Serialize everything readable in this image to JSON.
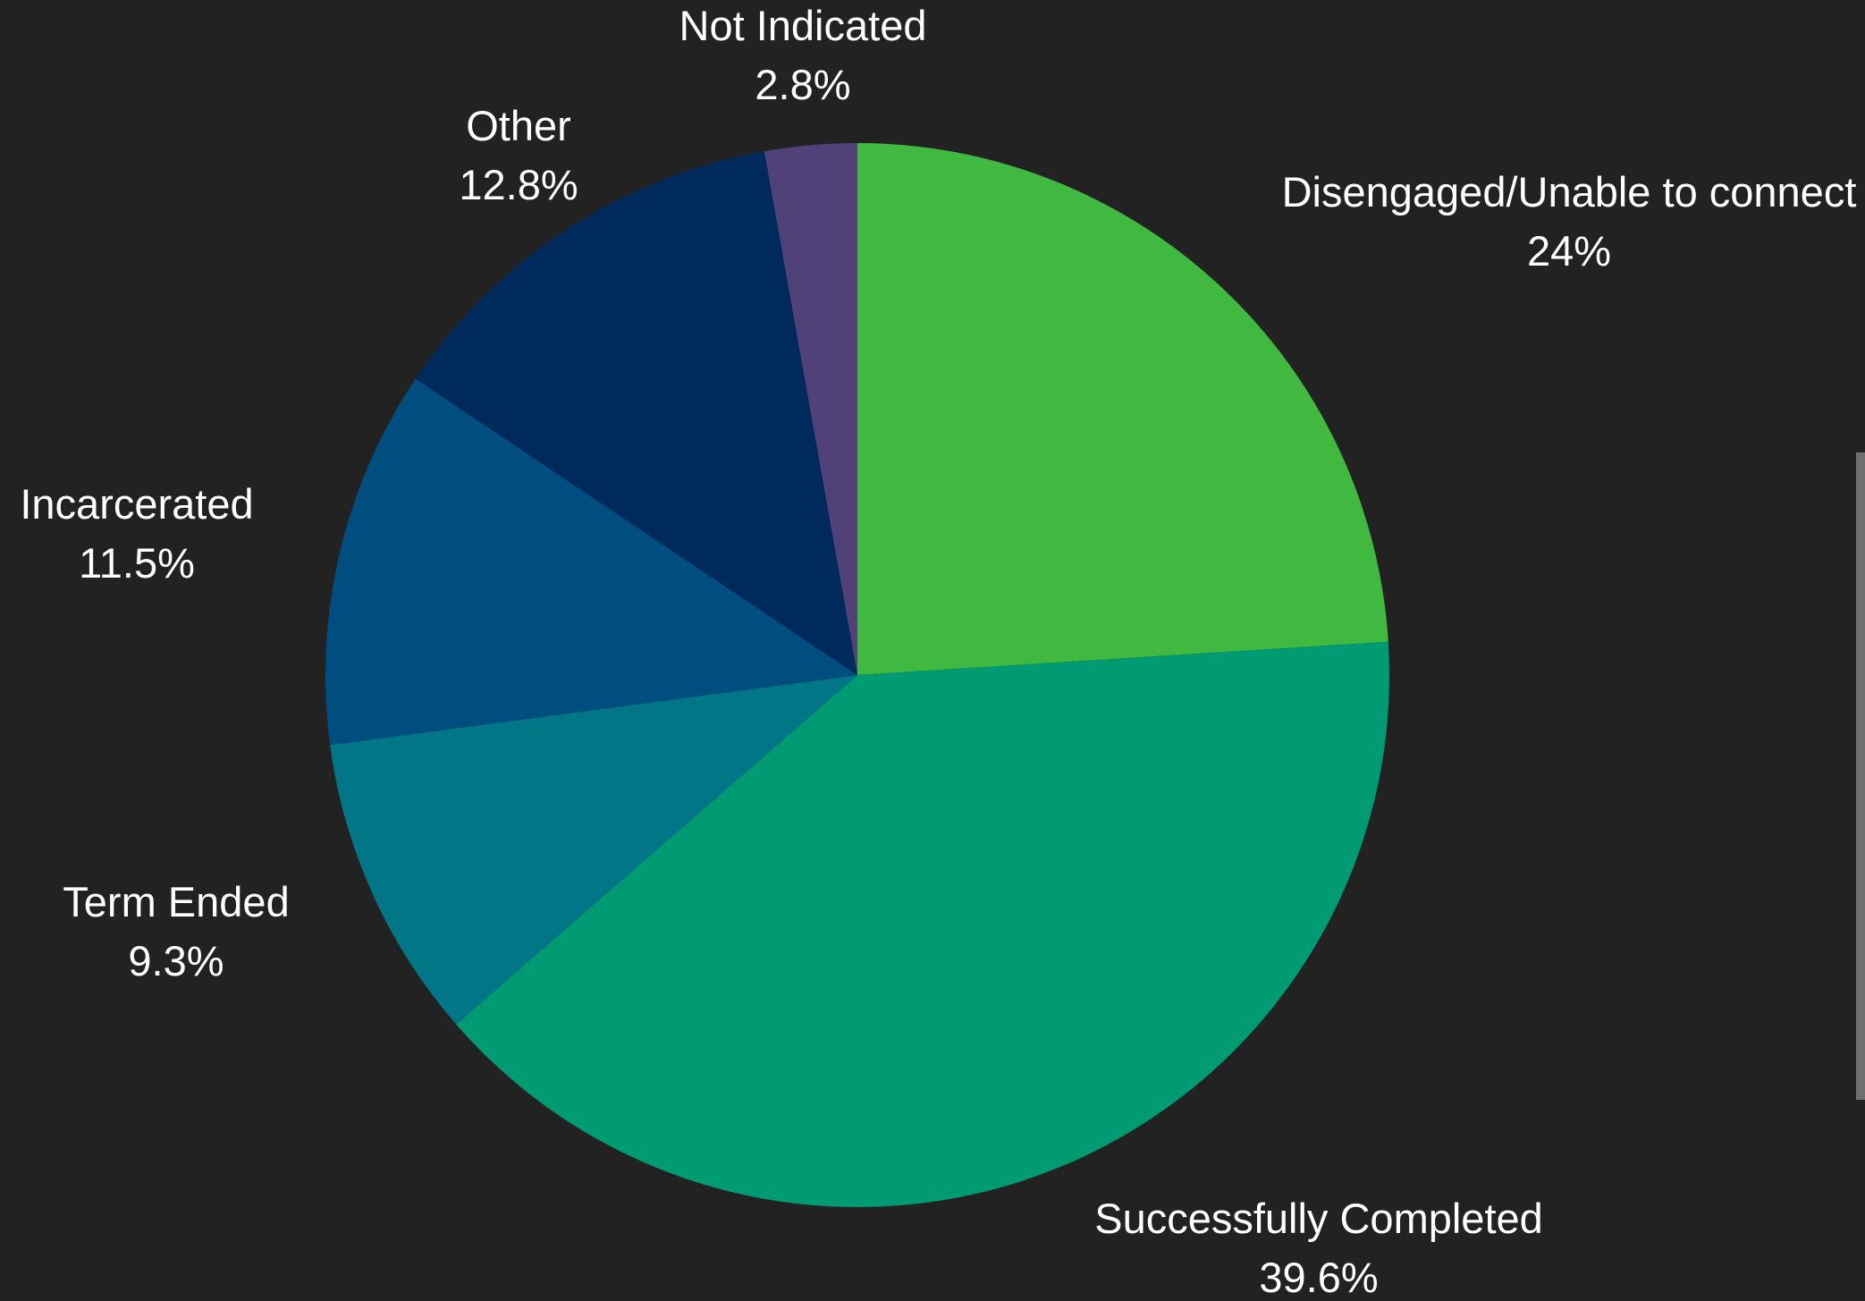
{
  "chart_data": {
    "type": "pie",
    "start": "top",
    "direction": "clockwise",
    "slices": [
      {
        "label": "Disengaged/Unable to connect",
        "value": 24,
        "value_text": "24%",
        "color": "#41b840"
      },
      {
        "label": "Successfully Completed",
        "value": 39.6,
        "value_text": "39.6%",
        "color": "#009b72"
      },
      {
        "label": "Term Ended",
        "value": 9.3,
        "value_text": "9.3%",
        "color": "#007686"
      },
      {
        "label": "Incarcerated",
        "value": 11.5,
        "value_text": "11.5%",
        "color": "#004e80"
      },
      {
        "label": "Other",
        "value": 12.8,
        "value_text": "12.8%",
        "color": "#002a5c"
      },
      {
        "label": "Not Indicated",
        "value": 2.8,
        "value_text": "2.8%",
        "color": "#514179"
      }
    ]
  }
}
